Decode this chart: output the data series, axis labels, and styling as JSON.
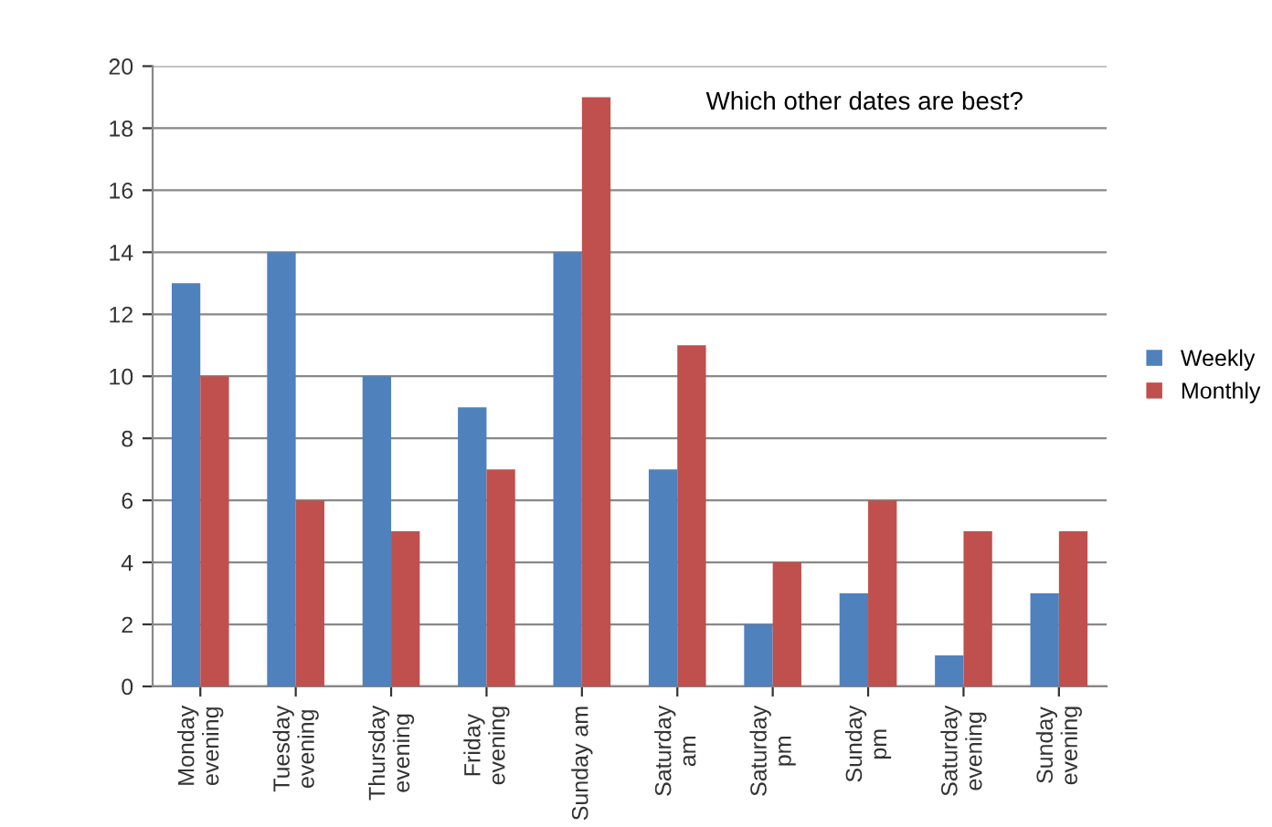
{
  "chart_data": {
    "type": "bar",
    "title": "Which other dates are best?",
    "categories": [
      "Monday\nevening",
      "Tuesday\nevening",
      "Thursday\nevening",
      "Friday\nevening",
      "Sunday am",
      "Saturday\nam",
      "Saturday\npm",
      "Sunday\npm",
      "Saturday\nevening",
      "Sunday\nevening"
    ],
    "series": [
      {
        "name": "Weekly",
        "color": "#4f81bd",
        "values": [
          13,
          14,
          10,
          9,
          14,
          7,
          2,
          3,
          1,
          3
        ]
      },
      {
        "name": "Monthly",
        "color": "#c0504d",
        "values": [
          10,
          6,
          5,
          7,
          19,
          11,
          4,
          6,
          5,
          5
        ]
      }
    ],
    "ylim": [
      0,
      20
    ],
    "yticks": [
      0,
      2,
      4,
      6,
      8,
      10,
      12,
      14,
      16,
      18,
      20
    ],
    "grid": "y",
    "legend": "right"
  }
}
